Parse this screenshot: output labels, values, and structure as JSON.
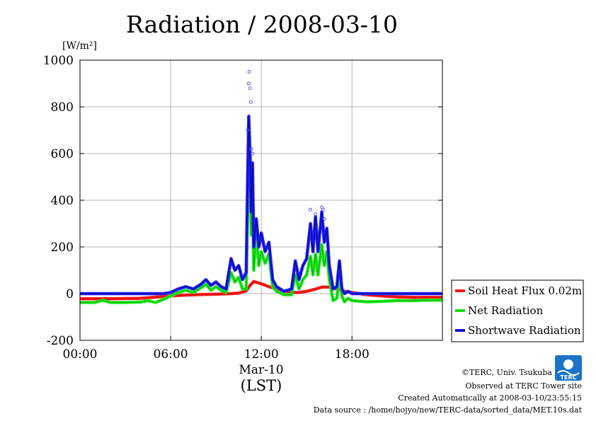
{
  "title": "Radiation / 2008-03-10",
  "unit_label": "[W/m²]",
  "colors": {
    "soil": "#ff2222",
    "net": "#22ee22",
    "shortwave": "#2222ff",
    "grid": "#b4b4b4",
    "logo": "#1a73c8"
  },
  "x_axis": {
    "tick_labels": [
      "00:00",
      "06:00",
      "12:00",
      "18:00"
    ],
    "date_label": "Mar-10",
    "label": "(LST)"
  },
  "y_axis": {
    "tick_labels": [
      "1000",
      "800",
      "600",
      "400",
      "200",
      "0",
      "-200"
    ]
  },
  "legend": {
    "items": [
      {
        "label": "Soil Heat Flux 0.02m",
        "series": "soil"
      },
      {
        "label": "Net Radiation",
        "series": "net"
      },
      {
        "label": "Shortwave Radiation",
        "series": "shortwave"
      }
    ]
  },
  "credits": {
    "logo_text": "TERC",
    "copyright": "©TERC, Univ. Tsukuba",
    "observed": "Observed at TERC Tower site",
    "created": "Created Automatically at 2008-03-10/23:55:15",
    "source": "Data source : /home/hojyo/new/TERC-data/sorted_data/MET.10s.dat"
  },
  "chart_data": {
    "type": "line",
    "title": "Radiation / 2008-03-10",
    "ylabel": "[W/m²]",
    "xlabel": "(LST)",
    "xlim": [
      "00:00",
      "23:59"
    ],
    "ylim": [
      -200,
      1000
    ],
    "x_ticks": [
      "00:00",
      "06:00",
      "12:00",
      "18:00"
    ],
    "y_ticks": [
      1000,
      800,
      600,
      400,
      200,
      0,
      -200
    ],
    "grid": true,
    "legend_position": "right",
    "series": [
      {
        "name": "Soil Heat Flux 0.02m",
        "key": "soil",
        "x": [
          "00:00",
          "02:00",
          "04:00",
          "05:00",
          "06:00",
          "07:00",
          "08:00",
          "09:00",
          "10:00",
          "10:30",
          "11:00",
          "11:15",
          "11:30",
          "12:00",
          "12:30",
          "13:00",
          "13:30",
          "14:00",
          "14:30",
          "15:00",
          "15:30",
          "16:00",
          "16:30",
          "17:00",
          "17:30",
          "18:00",
          "19:00",
          "20:00",
          "21:00",
          "22:00",
          "23:59"
        ],
        "values": [
          -22,
          -22,
          -20,
          -15,
          -10,
          -6,
          -4,
          -2,
          0,
          2,
          12,
          35,
          52,
          42,
          30,
          20,
          10,
          5,
          5,
          10,
          18,
          28,
          28,
          20,
          10,
          5,
          -5,
          -10,
          -14,
          -16,
          -16
        ]
      },
      {
        "name": "Net Radiation",
        "key": "net",
        "x": [
          "00:00",
          "01:00",
          "01:30",
          "02:00",
          "03:00",
          "04:00",
          "04:30",
          "05:00",
          "05:30",
          "06:00",
          "06:30",
          "07:00",
          "07:30",
          "08:00",
          "08:20",
          "08:40",
          "09:00",
          "09:20",
          "09:40",
          "10:00",
          "10:15",
          "10:30",
          "10:45",
          "11:00",
          "11:05",
          "11:10",
          "11:15",
          "11:20",
          "11:25",
          "11:30",
          "11:40",
          "11:50",
          "12:00",
          "12:15",
          "12:30",
          "12:45",
          "13:00",
          "13:30",
          "14:00",
          "14:15",
          "14:30",
          "14:45",
          "15:00",
          "15:15",
          "15:25",
          "15:35",
          "15:45",
          "16:00",
          "16:10",
          "16:20",
          "16:30",
          "16:45",
          "17:00",
          "17:10",
          "17:20",
          "17:30",
          "17:45",
          "18:00",
          "19:00",
          "20:00",
          "21:00",
          "22:00",
          "23:00",
          "23:59"
        ],
        "values": [
          -38,
          -38,
          -28,
          -38,
          -38,
          -36,
          -30,
          -38,
          -25,
          -10,
          5,
          15,
          5,
          25,
          40,
          15,
          30,
          15,
          5,
          90,
          50,
          70,
          20,
          20,
          350,
          580,
          480,
          250,
          420,
          100,
          270,
          120,
          180,
          130,
          170,
          30,
          10,
          -5,
          -5,
          80,
          20,
          60,
          80,
          160,
          80,
          170,
          80,
          210,
          120,
          180,
          60,
          -30,
          -20,
          100,
          -10,
          -35,
          -20,
          -30,
          -35,
          -33,
          -30,
          -30,
          -28,
          -28
        ]
      },
      {
        "name": "Shortwave Radiation",
        "key": "shortwave",
        "x": [
          "00:00",
          "02:00",
          "04:00",
          "05:00",
          "05:30",
          "06:00",
          "06:30",
          "07:00",
          "07:30",
          "08:00",
          "08:20",
          "08:40",
          "09:00",
          "09:20",
          "09:40",
          "10:00",
          "10:15",
          "10:30",
          "10:45",
          "11:00",
          "11:05",
          "11:10",
          "11:15",
          "11:20",
          "11:25",
          "11:30",
          "11:40",
          "11:50",
          "12:00",
          "12:15",
          "12:30",
          "12:45",
          "13:00",
          "13:30",
          "14:00",
          "14:15",
          "14:30",
          "14:45",
          "15:00",
          "15:15",
          "15:25",
          "15:35",
          "15:45",
          "16:00",
          "16:10",
          "16:20",
          "16:30",
          "16:45",
          "17:00",
          "17:10",
          "17:20",
          "17:30",
          "17:45",
          "18:00",
          "19:00",
          "20:00",
          "21:00",
          "22:00",
          "23:00",
          "23:59"
        ],
        "values": [
          0,
          0,
          0,
          0,
          0,
          5,
          20,
          30,
          20,
          40,
          60,
          35,
          50,
          30,
          20,
          150,
          100,
          120,
          60,
          90,
          450,
          760,
          600,
          350,
          560,
          200,
          320,
          200,
          260,
          180,
          220,
          60,
          30,
          10,
          20,
          140,
          60,
          120,
          150,
          300,
          180,
          330,
          180,
          350,
          220,
          280,
          120,
          20,
          30,
          140,
          20,
          0,
          10,
          0,
          0,
          0,
          0,
          0,
          0,
          0
        ]
      }
    ],
    "scatter_points": {
      "name": "Shortwave Radiation (10 s samples)",
      "x": [
        "11:05",
        "11:10",
        "11:12",
        "11:15",
        "11:18",
        "11:20",
        "11:25",
        "15:15",
        "15:35",
        "16:00",
        "16:05",
        "16:10"
      ],
      "values": [
        700,
        900,
        950,
        880,
        820,
        620,
        600,
        360,
        340,
        370,
        360,
        320
      ]
    }
  }
}
